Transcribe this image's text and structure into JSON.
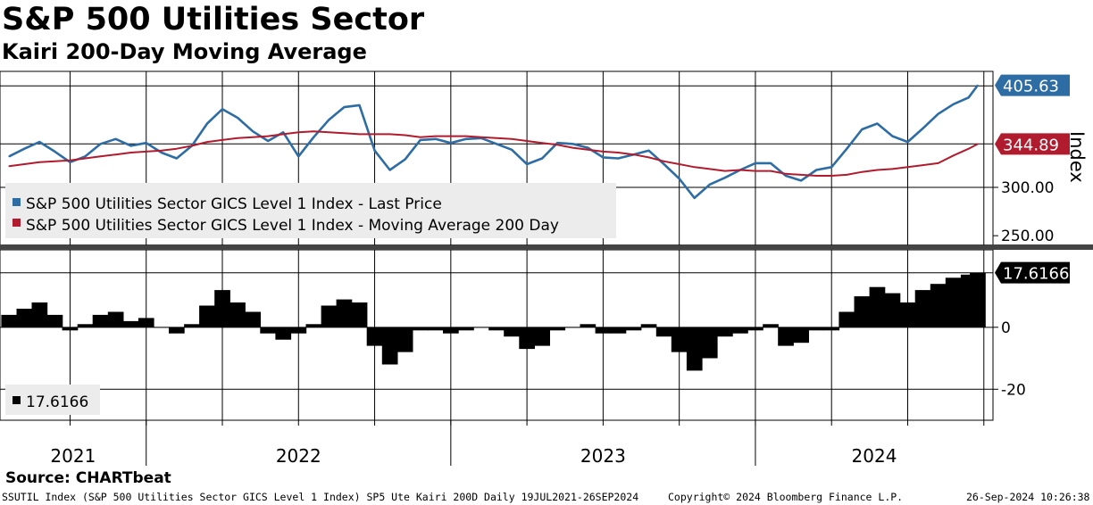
{
  "header": {
    "title": "S&P 500 Utilities Sector",
    "subtitle": "Kairi 200-Day Moving Average"
  },
  "source": "Source: CHARTbeat",
  "footer": {
    "left": "SSUTIL Index (S&P 500 Utilities Sector GICS Level 1 Index) SP5 Ute Kairi 200D  Daily 19JUL2021-26SEP2024",
    "center": "Copyright© 2024 Bloomberg Finance L.P.",
    "right": "26-Sep-2024 10:26:38"
  },
  "colors": {
    "price": "#2e6da4",
    "ma": "#b01c2e",
    "kairi": "#000000",
    "grid": "#000000"
  },
  "chart_data": [
    {
      "type": "line",
      "title": "S&P 500 Utilities Sector",
      "ylabel": "Index",
      "ylim": [
        240,
        420
      ],
      "yticks": [
        "300.00",
        "250.00"
      ],
      "ytick_values": [
        300,
        250
      ],
      "x_labels": [
        "2021",
        "2022",
        "2023",
        "2024"
      ],
      "x": [
        2021.55,
        2021.6,
        2021.65,
        2021.7,
        2021.75,
        2021.8,
        2021.85,
        2021.9,
        2021.95,
        2022.0,
        2022.05,
        2022.1,
        2022.15,
        2022.2,
        2022.25,
        2022.3,
        2022.35,
        2022.4,
        2022.45,
        2022.5,
        2022.55,
        2022.6,
        2022.65,
        2022.7,
        2022.75,
        2022.8,
        2022.85,
        2022.9,
        2022.95,
        2023.0,
        2023.05,
        2023.1,
        2023.15,
        2023.2,
        2023.25,
        2023.3,
        2023.35,
        2023.4,
        2023.45,
        2023.5,
        2023.55,
        2023.6,
        2023.65,
        2023.7,
        2023.75,
        2023.8,
        2023.85,
        2023.9,
        2023.95,
        2024.0,
        2024.05,
        2024.1,
        2024.15,
        2024.2,
        2024.25,
        2024.3,
        2024.35,
        2024.4,
        2024.45,
        2024.5,
        2024.55,
        2024.6,
        2024.65,
        2024.7,
        2024.73
      ],
      "legend": [
        "S&P 500 Utilities Sector GICS Level 1 Index - Last Price",
        "S&P 500 Utilities Sector GICS Level 1 Index - Moving Average 200 Day"
      ],
      "last_values": [
        "405.63",
        "344.89"
      ],
      "series": [
        {
          "name": "S&P 500 Utilities Sector GICS Level 1 Index - Last Price",
          "values": [
            332,
            340,
            347,
            337,
            326,
            332,
            345,
            350,
            343,
            346,
            336,
            330,
            343,
            366,
            381,
            372,
            358,
            348,
            357,
            332,
            352,
            370,
            383,
            385,
            338,
            318,
            329,
            349,
            350,
            346,
            350,
            351,
            345,
            339,
            324,
            330,
            346,
            345,
            341,
            331,
            330,
            334,
            338,
            324,
            309,
            289,
            303,
            310,
            318,
            325,
            325,
            312,
            307,
            318,
            321,
            340,
            360,
            366,
            353,
            347,
            361,
            376,
            386,
            393,
            405.63
          ]
        },
        {
          "name": "S&P 500 Utilities Sector GICS Level 1 Index - Moving Average 200 Day",
          "values": [
            322,
            324,
            326,
            327,
            328,
            330,
            332,
            334,
            336,
            337,
            338,
            340,
            343,
            347,
            349,
            351,
            352,
            353,
            355,
            357,
            358,
            357,
            356,
            355,
            355,
            355,
            354,
            352,
            353,
            353,
            353,
            352,
            351,
            350,
            348,
            346,
            344,
            341,
            339,
            337,
            336,
            334,
            331,
            327,
            324,
            321,
            319,
            317,
            318,
            317,
            317,
            314,
            313,
            312,
            312,
            313,
            316,
            318,
            319,
            321,
            323,
            325,
            333,
            340,
            344.89
          ]
        }
      ]
    },
    {
      "type": "bar",
      "title": "SP5 Ute Kairi 200D",
      "ylim": [
        -30,
        25
      ],
      "yticks": [
        "0",
        "-20"
      ],
      "ytick_values": [
        0,
        -20
      ],
      "last_value": "17.6166",
      "legend": [
        "17.6166"
      ],
      "x": [
        2021.55,
        2021.6,
        2021.65,
        2021.7,
        2021.75,
        2021.8,
        2021.85,
        2021.9,
        2021.95,
        2022.0,
        2022.05,
        2022.1,
        2022.15,
        2022.2,
        2022.25,
        2022.3,
        2022.35,
        2022.4,
        2022.45,
        2022.5,
        2022.55,
        2022.6,
        2022.65,
        2022.7,
        2022.75,
        2022.8,
        2022.85,
        2022.9,
        2022.95,
        2023.0,
        2023.05,
        2023.1,
        2023.15,
        2023.2,
        2023.25,
        2023.3,
        2023.35,
        2023.4,
        2023.45,
        2023.5,
        2023.55,
        2023.6,
        2023.65,
        2023.7,
        2023.75,
        2023.8,
        2023.85,
        2023.9,
        2023.95,
        2024.0,
        2024.05,
        2024.1,
        2024.15,
        2024.2,
        2024.25,
        2024.3,
        2024.35,
        2024.4,
        2024.45,
        2024.5,
        2024.55,
        2024.6,
        2024.65,
        2024.7,
        2024.73
      ],
      "values": [
        4,
        6,
        8,
        4,
        -1,
        1,
        4,
        5,
        2,
        3,
        0,
        -2,
        1,
        7,
        12,
        8,
        5,
        -2,
        -4,
        -2,
        1,
        7,
        9,
        8,
        -6,
        -12,
        -8,
        -1,
        -1,
        -2,
        -1,
        0,
        -1,
        -3,
        -7,
        -6,
        -1,
        0,
        1,
        -2,
        -2,
        -1,
        1,
        -3,
        -8,
        -14,
        -10,
        -3,
        -2,
        -1,
        1,
        -6,
        -5,
        -1,
        -1,
        5,
        10,
        13,
        11,
        8,
        12,
        14,
        16,
        17,
        17.6166
      ]
    }
  ]
}
